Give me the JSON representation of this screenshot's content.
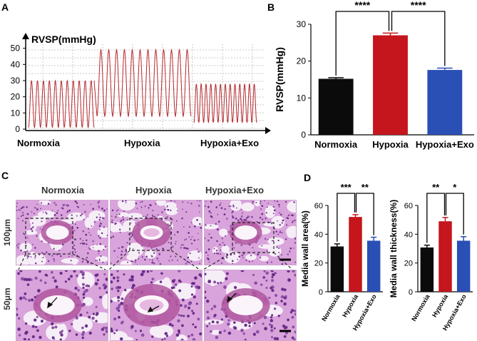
{
  "panels": {
    "a": "A",
    "b": "B",
    "c": "C",
    "d": "D"
  },
  "colors": {
    "normoxia": "#0b0b0b",
    "hypoxia": "#c4161c",
    "hypoxia_exo": "#2a4fb5",
    "trace": "#b5282e",
    "tissue": "#b76fbe"
  },
  "chart_data": [
    {
      "id": "A",
      "type": "line",
      "ylabel": "RVSP(mmHg)",
      "yticks": [
        0,
        10,
        20,
        30,
        40,
        50
      ],
      "ylim": [
        0,
        60
      ],
      "groups": [
        "Normoxia",
        "Hypoxia",
        "Hypoxia+Exo"
      ],
      "segments": [
        {
          "name": "Normoxia",
          "cycles": 11,
          "min": 1,
          "max": 30
        },
        {
          "name": "Hypoxia",
          "cycles": 12,
          "min": 8,
          "max": 49
        },
        {
          "name": "Hypoxia+Exo",
          "cycles": 13,
          "min": 4,
          "max": 28
        }
      ]
    },
    {
      "id": "B",
      "type": "bar",
      "categories": [
        "Normoxia",
        "Hypoxia",
        "Hypoxia+Exo"
      ],
      "values": [
        15.2,
        27.0,
        17.6
      ],
      "errors": [
        0.3,
        0.6,
        0.5
      ],
      "ylabel": "RVSP(mmHg)",
      "ylim": [
        0,
        30
      ],
      "yticks": [
        0,
        10,
        20,
        30
      ],
      "significance": [
        {
          "from": 0,
          "to": 1,
          "label": "****"
        },
        {
          "from": 1,
          "to": 2,
          "label": "****"
        }
      ]
    },
    {
      "id": "D1",
      "type": "bar",
      "categories": [
        "Normoxia",
        "Hypoxia",
        "Hypoxia+Exo"
      ],
      "values": [
        31.5,
        52.0,
        35.5
      ],
      "errors": [
        1.8,
        1.6,
        2.4
      ],
      "ylabel": "Media wall area(%)",
      "ylim": [
        0,
        60
      ],
      "yticks": [
        0,
        20,
        40,
        60
      ],
      "significance": [
        {
          "from": 0,
          "to": 1,
          "label": "***"
        },
        {
          "from": 1,
          "to": 2,
          "label": "**"
        }
      ]
    },
    {
      "id": "D2",
      "type": "bar",
      "categories": [
        "Normoxia",
        "Hypoxia",
        "Hypoxia+Exo"
      ],
      "values": [
        30.8,
        49.0,
        35.5
      ],
      "errors": [
        1.6,
        2.6,
        2.8
      ],
      "ylabel": "Media wall thickness(%)",
      "ylim": [
        0,
        60
      ],
      "yticks": [
        0,
        20,
        40,
        60
      ],
      "significance": [
        {
          "from": 0,
          "to": 1,
          "label": "**"
        },
        {
          "from": 1,
          "to": 2,
          "label": "*"
        }
      ]
    }
  ],
  "histology": {
    "columns": [
      "Normoxia",
      "Hypoxia",
      "Hypoxia+Exo"
    ],
    "rows": [
      "100μm",
      "50μm"
    ]
  }
}
